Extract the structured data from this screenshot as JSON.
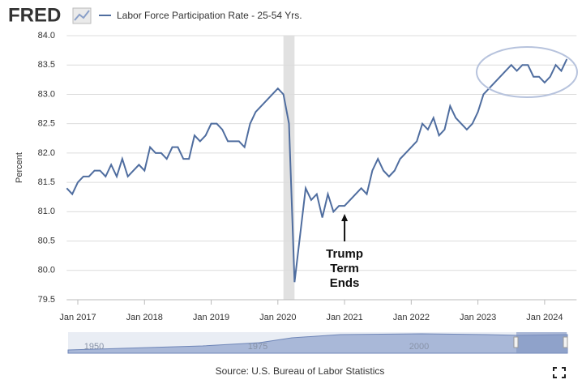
{
  "logo": "FRED",
  "chart_data": {
    "type": "line",
    "legend": "Labor Force Participation Rate - 25-54 Yrs.",
    "y_label": "Percent",
    "x": [
      "2016-11",
      "2016-12",
      "2017-01",
      "2017-02",
      "2017-03",
      "2017-04",
      "2017-05",
      "2017-06",
      "2017-07",
      "2017-08",
      "2017-09",
      "2017-10",
      "2017-11",
      "2017-12",
      "2018-01",
      "2018-02",
      "2018-03",
      "2018-04",
      "2018-05",
      "2018-06",
      "2018-07",
      "2018-08",
      "2018-09",
      "2018-10",
      "2018-11",
      "2018-12",
      "2019-01",
      "2019-02",
      "2019-03",
      "2019-04",
      "2019-05",
      "2019-06",
      "2019-07",
      "2019-08",
      "2019-09",
      "2019-10",
      "2019-11",
      "2019-12",
      "2020-01",
      "2020-02",
      "2020-03",
      "2020-04",
      "2020-05",
      "2020-06",
      "2020-07",
      "2020-08",
      "2020-09",
      "2020-10",
      "2020-11",
      "2020-12",
      "2021-01",
      "2021-02",
      "2021-03",
      "2021-04",
      "2021-05",
      "2021-06",
      "2021-07",
      "2021-08",
      "2021-09",
      "2021-10",
      "2021-11",
      "2021-12",
      "2022-01",
      "2022-02",
      "2022-03",
      "2022-04",
      "2022-05",
      "2022-06",
      "2022-07",
      "2022-08",
      "2022-09",
      "2022-10",
      "2022-11",
      "2022-12",
      "2023-01",
      "2023-02",
      "2023-03",
      "2023-04",
      "2023-05",
      "2023-06",
      "2023-07",
      "2023-08",
      "2023-09",
      "2023-10",
      "2023-11",
      "2023-12",
      "2024-01",
      "2024-02",
      "2024-03",
      "2024-04",
      "2024-05"
    ],
    "series": [
      {
        "name": "Labor Force Participation Rate - 25-54 Yrs.",
        "color": "#4f6d9f",
        "values": [
          81.4,
          81.3,
          81.5,
          81.6,
          81.6,
          81.7,
          81.7,
          81.6,
          81.8,
          81.6,
          81.9,
          81.6,
          81.7,
          81.8,
          81.7,
          82.1,
          82.0,
          82.0,
          81.9,
          82.1,
          82.1,
          81.9,
          81.9,
          82.3,
          82.2,
          82.3,
          82.5,
          82.5,
          82.4,
          82.2,
          82.2,
          82.2,
          82.1,
          82.5,
          82.7,
          82.8,
          82.9,
          83.0,
          83.1,
          83.0,
          82.5,
          79.8,
          80.6,
          81.4,
          81.2,
          81.3,
          80.9,
          81.3,
          81.0,
          81.1,
          81.1,
          81.2,
          81.3,
          81.4,
          81.3,
          81.7,
          81.9,
          81.7,
          81.6,
          81.7,
          81.9,
          82.0,
          82.1,
          82.2,
          82.5,
          82.4,
          82.6,
          82.3,
          82.4,
          82.8,
          82.6,
          82.5,
          82.4,
          82.5,
          82.7,
          83.0,
          83.1,
          83.2,
          83.3,
          83.4,
          83.5,
          83.4,
          83.5,
          83.5,
          83.3,
          83.3,
          83.2,
          83.3,
          83.5,
          83.4,
          83.6
        ]
      }
    ],
    "ylim": [
      79.5,
      84
    ],
    "yticks": [
      79.5,
      {
        "value": 80,
        "label": "80.0"
      },
      80.5,
      {
        "value": 81,
        "label": "81.0"
      },
      81.5,
      {
        "value": 82,
        "label": "82.0"
      },
      82.5,
      {
        "value": 83,
        "label": "83.0"
      },
      83.5,
      {
        "value": 84,
        "label": "84.0"
      }
    ],
    "xlim": [
      "2016-11",
      "2024-05"
    ],
    "xticks": [
      {
        "value": "2017-01",
        "label": "Jan 2017"
      },
      {
        "value": "2018-01",
        "label": "Jan 2018"
      },
      {
        "value": "2019-01",
        "label": "Jan 2019"
      },
      {
        "value": "2020-01",
        "label": "Jan 2020"
      },
      {
        "value": "2021-01",
        "label": "Jan 2021"
      },
      {
        "value": "2022-01",
        "label": "Jan 2022"
      },
      {
        "value": "2023-01",
        "label": "Jan 2023"
      },
      {
        "value": "2024-01",
        "label": "Jan 2024"
      }
    ],
    "grid": true,
    "recession": [
      "2020-02",
      "2020-04"
    ],
    "annotation": {
      "lines": [
        "Trump",
        "Term",
        "Ends"
      ],
      "x": "2021-01"
    },
    "navigator_labels": [
      "1950",
      "1975",
      "2000"
    ],
    "source": "Source: U.S. Bureau of Labor Statistics"
  }
}
